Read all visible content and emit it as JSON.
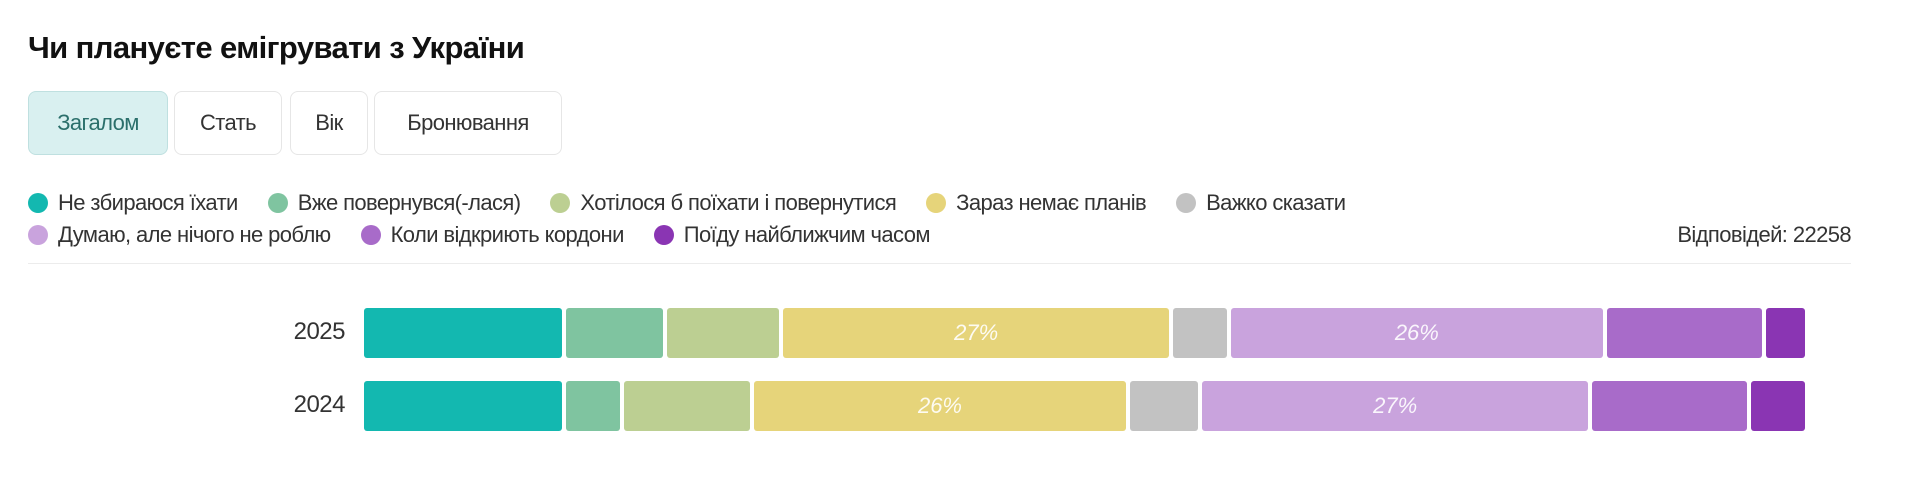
{
  "title": "Чи плануєте емігрувати з України",
  "tabs": [
    {
      "label": "Загалом",
      "active": true
    },
    {
      "label": "Стать",
      "active": false
    },
    {
      "label": "Вік",
      "active": false
    },
    {
      "label": "Бронювання",
      "active": false
    }
  ],
  "responses_label": "Відповідей: 22258",
  "chart_data": {
    "type": "bar",
    "orientation": "horizontal-stacked-100",
    "categories": [
      "2025",
      "2024"
    ],
    "series": [
      {
        "name": "Не збираюся їхати",
        "color": "#13b8b0",
        "values": [
          14,
          14
        ]
      },
      {
        "name": "Вже повернувся(-лася)",
        "color": "#7fc4a0",
        "values": [
          7,
          4
        ]
      },
      {
        "name": "Хотілося б поїхати і повернутися",
        "color": "#bccf92",
        "values": [
          8,
          9
        ]
      },
      {
        "name": "Зараз немає планів",
        "color": "#e6d47a",
        "values": [
          27,
          26
        ]
      },
      {
        "name": "Важко сказати",
        "color": "#c2c2c2",
        "values": [
          4,
          5
        ]
      },
      {
        "name": "Думаю, але нічого не роблю",
        "color": "#c9a3dd",
        "values": [
          26,
          27
        ]
      },
      {
        "name": "Коли відкриють кордони",
        "color": "#a86bc9",
        "values": [
          11,
          11
        ]
      },
      {
        "name": "Поїду найближчим часом",
        "color": "#8a35b3",
        "values": [
          3,
          4
        ]
      }
    ],
    "data_labels": [
      [
        "",
        "",
        "",
        "27%",
        "",
        "26%",
        "",
        ""
      ],
      [
        "",
        "",
        "",
        "26%",
        "",
        "27%",
        "",
        ""
      ]
    ],
    "xlim": [
      0,
      100
    ],
    "legend": "top",
    "grid": false
  }
}
